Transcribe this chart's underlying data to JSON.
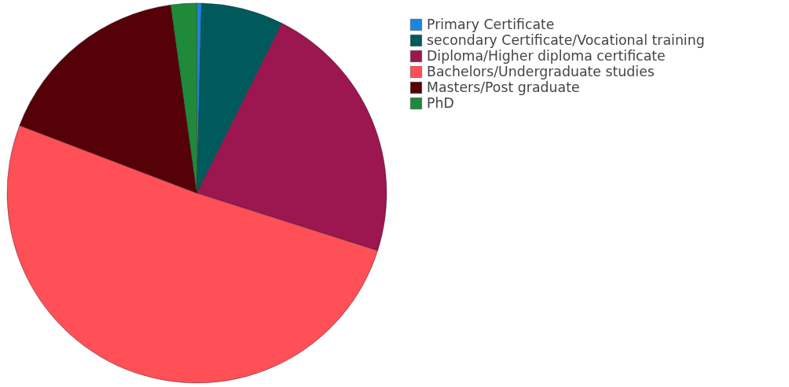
{
  "chart_data": {
    "type": "pie",
    "categories": [
      "Primary Certificate",
      "secondary Certificate/Vocational training",
      "Diploma/Higher diploma certificate",
      "Bachelors/Undergraduate studies",
      "Masters/Post graduate",
      "PhD"
    ],
    "values": [
      0.4,
      7.0,
      22.5,
      50.9,
      17.0,
      2.2
    ],
    "colors": [
      "#1a86e0",
      "#005a5c",
      "#9c1650",
      "#ff4f57",
      "#560008",
      "#1f8a3a"
    ],
    "legend": "right"
  }
}
